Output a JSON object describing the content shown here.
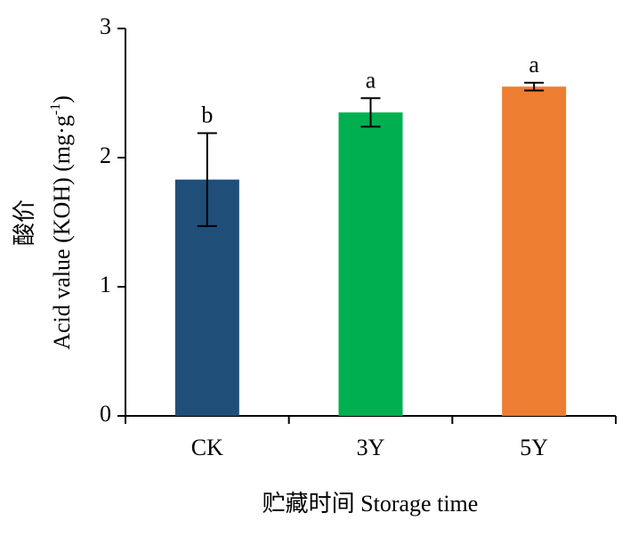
{
  "chart_data": {
    "type": "bar",
    "categories": [
      "CK",
      "3Y",
      "5Y"
    ],
    "values": [
      1.83,
      2.35,
      2.55
    ],
    "errors": [
      0.36,
      0.11,
      0.03
    ],
    "letters": [
      "b",
      "a",
      "a"
    ],
    "colors": [
      "#1f4e79",
      "#00b050",
      "#ed7d31"
    ],
    "ylim": [
      0,
      3
    ],
    "yticks": [
      0,
      1,
      2,
      3
    ],
    "y_label": {
      "zh": "酸价",
      "en": "Acid value (KOH) (mg·g",
      "sup": "-1",
      "end": ")"
    },
    "x_label": "贮藏时间 Storage time"
  }
}
